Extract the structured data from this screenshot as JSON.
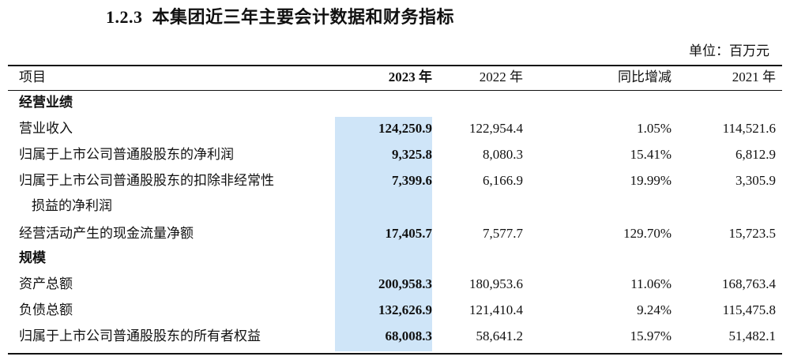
{
  "heading": {
    "number": "1.2.3",
    "title": "本集团近三年主要会计数据和财务指标"
  },
  "unit_label": "单位：百万元",
  "columns": {
    "item": "项目",
    "y2023": "2023 年",
    "y2022": "2022 年",
    "yoy": "同比增减",
    "y2021": "2021 年"
  },
  "sections": [
    {
      "title": "经营业绩",
      "rows": [
        {
          "name": "营业收入",
          "y2023": "124,250.9",
          "y2022": "122,954.4",
          "yoy": "1.05%",
          "y2021": "114,521.6"
        },
        {
          "name": "归属于上市公司普通股股东的净利润",
          "y2023": "9,325.8",
          "y2022": "8,080.3",
          "yoy": "15.41%",
          "y2021": "6,812.9"
        },
        {
          "name": "归属于上市公司普通股股东的扣除非经常性",
          "name_cont": "损益的净利润",
          "y2023": "7,399.6",
          "y2022": "6,166.9",
          "yoy": "19.99%",
          "y2021": "3,305.9"
        },
        {
          "name": "经营活动产生的现金流量净额",
          "y2023": "17,405.7",
          "y2022": "7,577.7",
          "yoy": "129.70%",
          "y2021": "15,723.5"
        }
      ]
    },
    {
      "title": "规模",
      "rows": [
        {
          "name": "资产总额",
          "y2023": "200,958.3",
          "y2022": "180,953.6",
          "yoy": "11.06%",
          "y2021": "168,763.4"
        },
        {
          "name": "负债总额",
          "y2023": "132,626.9",
          "y2022": "121,410.4",
          "yoy": "9.24%",
          "y2021": "115,475.8"
        },
        {
          "name": "归属于上市公司普通股股东的所有者权益",
          "y2023": "68,008.3",
          "y2022": "58,641.2",
          "yoy": "15.97%",
          "y2021": "51,482.1"
        }
      ]
    }
  ]
}
